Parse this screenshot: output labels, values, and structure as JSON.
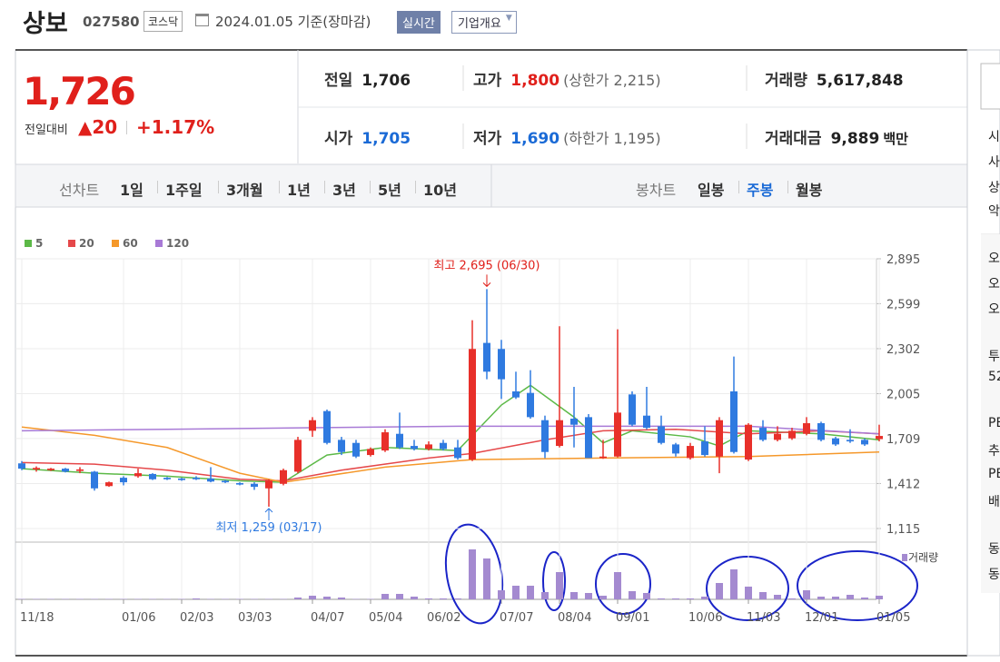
{
  "header": {
    "name": "상보",
    "code": "027580",
    "market": "코스닥",
    "date": "2024.01.05 기준(장마감)",
    "realtime": "실시간",
    "company": "기업개요"
  },
  "price": {
    "current": "1,726",
    "change_label": "전일대비",
    "change": "20",
    "change_pct": "+1.17%"
  },
  "stats": [
    {
      "label": "전일",
      "value": "1,706",
      "color": "#222"
    },
    {
      "label": "고가",
      "value": "1,800",
      "note": "(상한가 2,215)",
      "color": "#e0201b"
    },
    {
      "label": "거래량",
      "value": "5,617,848",
      "color": "#222"
    },
    {
      "label": "시가",
      "value": "1,705",
      "color": "#1a6ad6"
    },
    {
      "label": "저가",
      "value": "1,690",
      "note": "(하한가 1,195)",
      "color": "#1a6ad6"
    },
    {
      "label": "거래대금",
      "value": "9,889",
      "unit": "백만",
      "color": "#222"
    }
  ],
  "tabs": {
    "line_label": "선차트",
    "line": [
      "1일",
      "1주일",
      "3개월",
      "1년",
      "3년",
      "5년",
      "10년"
    ],
    "candle_label": "봉차트",
    "candle": [
      "일봉",
      "주봉",
      "월봉"
    ],
    "active_candle": 1
  },
  "sidebar": [
    "시",
    "사",
    "상",
    "악",
    "오",
    "오",
    "오",
    "투",
    "52",
    "PE",
    "추",
    "PE",
    "배",
    "동",
    "동"
  ],
  "chart_data": {
    "type": "candlestick",
    "ylim": [
      1115,
      2895
    ],
    "yticks": [
      {
        "value": 2895,
        "label": "2,895"
      },
      {
        "value": 2599,
        "label": "2,599"
      },
      {
        "value": 2302,
        "label": "2,302"
      },
      {
        "value": 2005,
        "label": "2,005"
      },
      {
        "value": 1709,
        "label": "1,709"
      },
      {
        "value": 1412,
        "label": "1,412"
      },
      {
        "value": 1115,
        "label": "1,115"
      }
    ],
    "xticks": [
      {
        "value": 0,
        "label": "11/18"
      },
      {
        "value": 7,
        "label": "01/06"
      },
      {
        "value": 11,
        "label": "02/03"
      },
      {
        "value": 15,
        "label": "03/03"
      },
      {
        "value": 20,
        "label": "04/07"
      },
      {
        "value": 24,
        "label": "05/04"
      },
      {
        "value": 28,
        "label": "06/02"
      },
      {
        "value": 33,
        "label": "07/07"
      },
      {
        "value": 37,
        "label": "08/04"
      },
      {
        "value": 41,
        "label": "09/01"
      },
      {
        "value": 46,
        "label": "10/06"
      },
      {
        "value": 50,
        "label": "11/03"
      },
      {
        "value": 54,
        "label": "12/01"
      },
      {
        "value": 59,
        "label": "01/05"
      }
    ],
    "up_color": "#e8302a",
    "down_color": "#2f7ae0",
    "volume_color": "#a48ad0",
    "volume_label": "거래량",
    "open": [
      1545,
      1505,
      1500,
      1510,
      1495,
      1490,
      1395,
      1450,
      1460,
      1475,
      1450,
      1445,
      1450,
      1445,
      1430,
      1415,
      1410,
      1380,
      1410,
      1490,
      1760,
      1890,
      1700,
      1680,
      1600,
      1630,
      1740,
      1660,
      1640,
      1680,
      1650,
      1570,
      2340,
      2300,
      2020,
      2010,
      1830,
      1660,
      1840,
      1850,
      1580,
      1590,
      2000,
      1860,
      1790,
      1670,
      1580,
      1690,
      1590,
      2020,
      1570,
      1780,
      1700,
      1710,
      1740,
      1810,
      1710,
      1700,
      1700,
      1705
    ],
    "high": [
      1560,
      1525,
      1515,
      1515,
      1520,
      1495,
      1425,
      1460,
      1510,
      1480,
      1455,
      1450,
      1460,
      1520,
      1435,
      1420,
      1420,
      1440,
      1510,
      1720,
      1850,
      1900,
      1720,
      1700,
      1650,
      1770,
      1880,
      1700,
      1690,
      1700,
      1700,
      2490,
      2695,
      2360,
      2150,
      2160,
      1860,
      2450,
      2050,
      1870,
      1700,
      2430,
      2020,
      2050,
      1860,
      1680,
      1680,
      1790,
      1850,
      2250,
      1810,
      1830,
      1790,
      1780,
      1850,
      1820,
      1720,
      1770,
      1710,
      1800
    ],
    "low": [
      1500,
      1490,
      1495,
      1485,
      1480,
      1365,
      1390,
      1400,
      1450,
      1435,
      1435,
      1430,
      1435,
      1420,
      1415,
      1400,
      1370,
      1259,
      1400,
      1480,
      1720,
      1670,
      1600,
      1580,
      1590,
      1620,
      1640,
      1630,
      1630,
      1630,
      1570,
      1560,
      2100,
      1970,
      1970,
      1840,
      1580,
      1650,
      1650,
      1580,
      1575,
      1585,
      1790,
      1770,
      1670,
      1590,
      1570,
      1590,
      1480,
      1610,
      1560,
      1690,
      1690,
      1700,
      1730,
      1690,
      1660,
      1680,
      1660,
      1690
    ],
    "close": [
      1510,
      1515,
      1510,
      1490,
      1505,
      1380,
      1420,
      1420,
      1480,
      1440,
      1440,
      1435,
      1440,
      1425,
      1420,
      1405,
      1390,
      1430,
      1500,
      1700,
      1830,
      1680,
      1620,
      1590,
      1640,
      1750,
      1650,
      1640,
      1670,
      1640,
      1580,
      2300,
      2150,
      2100,
      1980,
      1850,
      1620,
      1830,
      1800,
      1580,
      1590,
      1880,
      1800,
      1780,
      1680,
      1610,
      1660,
      1600,
      1830,
      1620,
      1800,
      1700,
      1740,
      1760,
      1810,
      1700,
      1670,
      1690,
      1670,
      1726
    ],
    "volume": [
      200000,
      200000,
      200000,
      200000,
      200000,
      200000,
      200000,
      200000,
      200000,
      200000,
      200000,
      200000,
      500000,
      200000,
      200000,
      200000,
      200000,
      200000,
      200000,
      1000000,
      2000000,
      1500000,
      1000000,
      200000,
      200000,
      3000000,
      3000000,
      1500000,
      500000,
      500000,
      500000,
      27500000,
      22500000,
      5000000,
      7500000,
      7500000,
      4000000,
      15000000,
      4000000,
      3500000,
      2000000,
      15000000,
      4500000,
      3500000,
      500000,
      500000,
      500000,
      1500000,
      9000000,
      16500000,
      7000000,
      4000000,
      2500000,
      500000,
      5000000,
      1500000,
      1500000,
      2500000,
      1000000,
      2000000
    ],
    "series": [
      {
        "name": "5",
        "color": "#5cb947",
        "x": [
          0,
          5,
          10,
          15,
          18,
          21,
          25,
          30,
          33,
          35,
          38,
          40,
          42,
          46,
          48,
          50,
          55,
          59
        ],
        "values": [
          1510,
          1480,
          1460,
          1430,
          1420,
          1600,
          1650,
          1630,
          1930,
          2060,
          1850,
          1680,
          1760,
          1720,
          1660,
          1760,
          1740,
          1700
        ]
      },
      {
        "name": "20",
        "color": "#e5484a",
        "x": [
          0,
          5,
          10,
          15,
          18,
          22,
          28,
          31,
          36,
          40,
          45,
          50,
          55,
          59
        ],
        "values": [
          1550,
          1540,
          1500,
          1440,
          1430,
          1500,
          1580,
          1610,
          1700,
          1760,
          1770,
          1740,
          1760,
          1740
        ]
      },
      {
        "name": "60",
        "color": "#f5982a",
        "x": [
          0,
          5,
          10,
          15,
          18,
          25,
          31,
          40,
          50,
          59
        ],
        "values": [
          1785,
          1730,
          1650,
          1480,
          1420,
          1520,
          1570,
          1580,
          1590,
          1620
        ]
      },
      {
        "name": "120",
        "color": "#a87ad6",
        "x": [
          0,
          10,
          20,
          30,
          40,
          50,
          59
        ],
        "values": [
          1760,
          1770,
          1780,
          1790,
          1790,
          1790,
          1740
        ]
      }
    ],
    "annotations": [
      {
        "text": "최고 2,695 (06/30)",
        "index": 32,
        "at": "high",
        "color": "#e0201b"
      },
      {
        "text": "최저 1,259 (03/17)",
        "index": 17,
        "at": "low",
        "color": "#2f7ae0"
      }
    ]
  }
}
